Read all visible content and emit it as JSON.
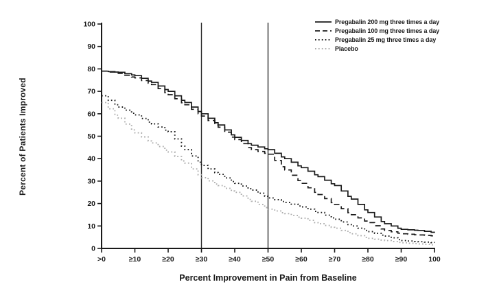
{
  "figure": {
    "background": "#ffffff"
  },
  "chart_data": {
    "type": "line",
    "title": "",
    "xlabel": "Percent Improvement in Pain from Baseline",
    "ylabel": "Percent of Patients Improved",
    "xlim": [
      0,
      100
    ],
    "ylim": [
      0,
      100
    ],
    "grid": false,
    "legend_position": "top-right",
    "x_ticks": [
      0,
      10,
      20,
      30,
      40,
      50,
      60,
      70,
      80,
      90,
      100
    ],
    "x_tick_labels": [
      ">0",
      "≥10",
      "≥20",
      "≥30",
      "≥40",
      "≥50",
      "≥60",
      "≥70",
      "≥80",
      "≥90",
      "100"
    ],
    "y_ticks": [
      0,
      10,
      20,
      30,
      40,
      50,
      60,
      70,
      80,
      90,
      100
    ],
    "y_tick_labels": [
      "0",
      "10",
      "20",
      "30",
      "40",
      "50",
      "60",
      "70",
      "80",
      "90",
      "100"
    ],
    "reference_lines_x": [
      30,
      50
    ],
    "axis_color": "#1a1a1a",
    "x": [
      0,
      5,
      10,
      15,
      20,
      25,
      30,
      35,
      40,
      45,
      50,
      55,
      60,
      65,
      70,
      75,
      80,
      85,
      90,
      95,
      100
    ],
    "series": [
      {
        "name": "Pregabalin 200 mg three times a day",
        "style": "solid",
        "color": "#1a1a1a",
        "values": [
          79,
          78.5,
          77,
          74,
          70,
          65,
          60,
          55,
          49.5,
          46,
          44,
          40,
          36,
          32,
          28,
          22,
          16,
          11,
          8.5,
          8,
          7
        ]
      },
      {
        "name": "Pregabalin 100 mg three times a day",
        "style": "dashed",
        "color": "#1a1a1a",
        "values": [
          79,
          78,
          76,
          73,
          68.5,
          64,
          59,
          54,
          48.5,
          44,
          42,
          35,
          29,
          24,
          19.5,
          15,
          11.5,
          8,
          6.5,
          6,
          5.5
        ]
      },
      {
        "name": "Pregabalin 25 mg three times a day",
        "style": "dotted",
        "color": "#1a1a1a",
        "values": [
          68,
          63,
          59.5,
          55.5,
          52,
          44,
          37,
          33,
          29,
          26,
          22.5,
          20.5,
          18.5,
          16,
          13,
          10,
          7.5,
          5.5,
          3.5,
          3,
          2.5
        ]
      },
      {
        "name": "Placebo",
        "style": "dotted",
        "color": "#ababab",
        "values": [
          65,
          58,
          51.5,
          47,
          43,
          38,
          31.5,
          28,
          25,
          21,
          17.5,
          15.5,
          13.5,
          11,
          9,
          6.5,
          4.5,
          3.5,
          2.5,
          2,
          1.5
        ]
      }
    ]
  }
}
